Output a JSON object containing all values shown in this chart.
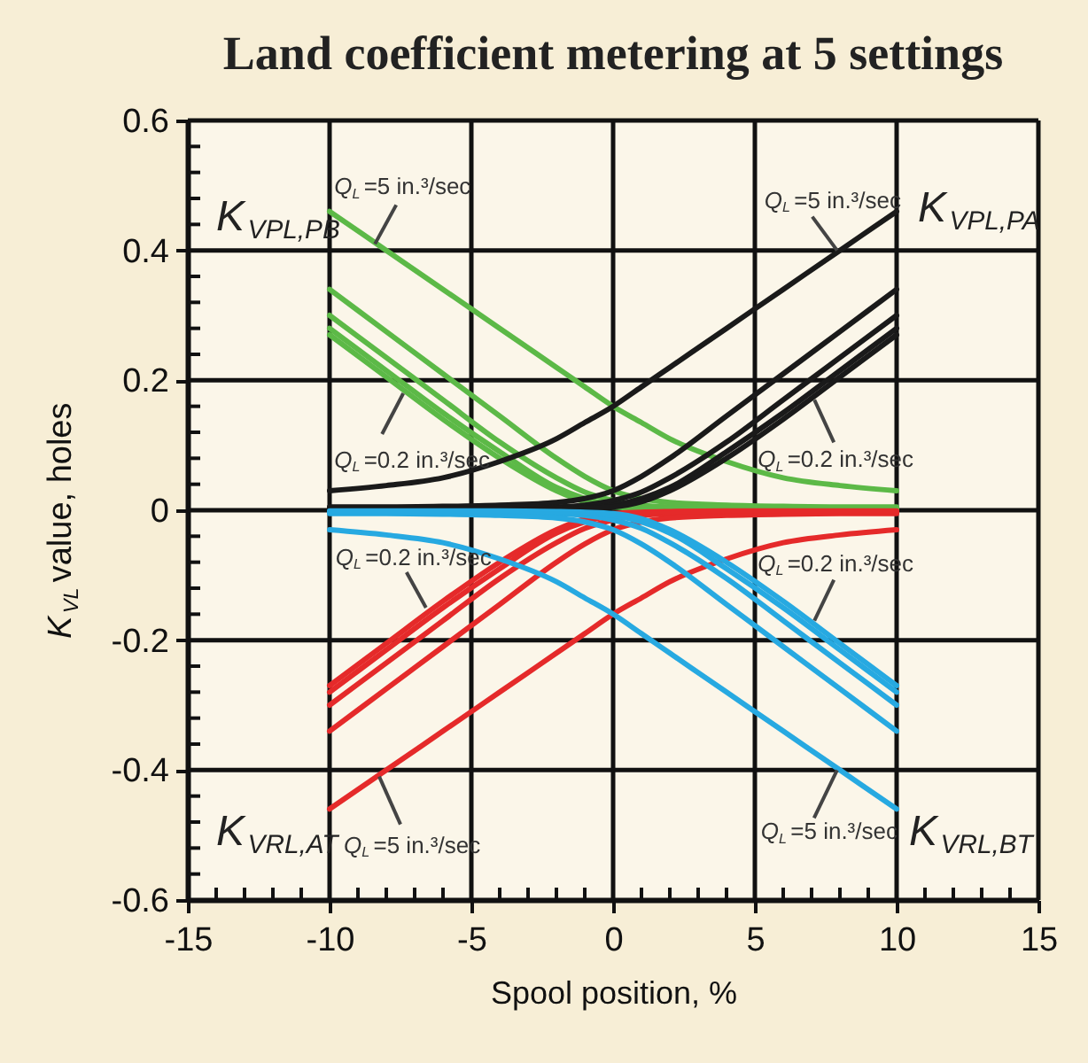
{
  "chart_data": {
    "type": "line",
    "title": "Land coefficient metering at 5 settings",
    "xlabel": "Spool position, %",
    "ylabel": "K$_{VL}$ value, holes",
    "x": [
      -10,
      -8,
      -6,
      -4,
      -2,
      -1,
      0,
      1,
      2,
      4,
      6,
      8,
      10
    ],
    "xlim": [
      -15,
      15
    ],
    "ylim": [
      -0.6,
      0.6
    ],
    "xticks": [
      -15,
      {
        "value": -14,
        "label": null
      },
      {
        "value": -13,
        "label": null
      },
      {
        "value": -12,
        "label": null
      },
      {
        "value": -11,
        "label": null
      },
      -10,
      {
        "value": -9,
        "label": null
      },
      {
        "value": -8,
        "label": null
      },
      {
        "value": -7,
        "label": null
      },
      {
        "value": -6,
        "label": null
      },
      -5,
      {
        "value": -4,
        "label": null
      },
      {
        "value": -3,
        "label": null
      },
      {
        "value": -2,
        "label": null
      },
      {
        "value": -1,
        "label": null
      },
      0,
      {
        "value": 1,
        "label": null
      },
      {
        "value": 2,
        "label": null
      },
      {
        "value": 3,
        "label": null
      },
      {
        "value": 4,
        "label": null
      },
      5,
      {
        "value": 6,
        "label": null
      },
      {
        "value": 7,
        "label": null
      },
      {
        "value": 8,
        "label": null
      },
      {
        "value": 9,
        "label": null
      },
      10,
      {
        "value": 11,
        "label": null
      },
      {
        "value": 12,
        "label": null
      },
      {
        "value": 13,
        "label": null
      },
      {
        "value": 14,
        "label": null
      },
      15
    ],
    "yticks": [
      -0.6,
      {
        "value": -0.56,
        "label": null
      },
      {
        "value": -0.52,
        "label": null
      },
      {
        "value": -0.48,
        "label": null
      },
      {
        "value": -0.44,
        "label": null
      },
      -0.4,
      {
        "value": -0.36,
        "label": null
      },
      {
        "value": -0.32,
        "label": null
      },
      {
        "value": -0.28,
        "label": null
      },
      {
        "value": -0.24,
        "label": null
      },
      -0.2,
      {
        "value": -0.16,
        "label": null
      },
      {
        "value": -0.12,
        "label": null
      },
      {
        "value": -0.08,
        "label": null
      },
      {
        "value": -0.04,
        "label": null
      },
      0,
      {
        "value": 0.04,
        "label": null
      },
      {
        "value": 0.08,
        "label": null
      },
      {
        "value": 0.12,
        "label": null
      },
      {
        "value": 0.16,
        "label": null
      },
      0.2,
      {
        "value": 0.24,
        "label": null
      },
      {
        "value": 0.28,
        "label": null
      },
      {
        "value": 0.32,
        "label": null
      },
      {
        "value": 0.36,
        "label": null
      },
      0.4,
      {
        "value": 0.44,
        "label": null
      },
      {
        "value": 0.48,
        "label": null
      },
      {
        "value": 0.52,
        "label": null
      },
      {
        "value": 0.56,
        "label": null
      },
      0.6
    ],
    "grid": true,
    "series": [
      {
        "color": "#5cb947",
        "values": [
          0.46,
          0.4,
          0.34,
          0.28,
          0.22,
          0.19,
          0.16,
          0.135,
          0.11,
          0.075,
          0.05,
          0.038,
          0.03
        ]
      },
      {
        "color": "#5cb947",
        "values": [
          0.34,
          0.275,
          0.21,
          0.145,
          0.08,
          0.052,
          0.03,
          0.018,
          0.012,
          0.008,
          0.006,
          0.005,
          0.005
        ]
      },
      {
        "color": "#5cb947",
        "values": [
          0.3,
          0.235,
          0.17,
          0.105,
          0.05,
          0.028,
          0.015,
          0.008,
          0.005,
          0.004,
          0.003,
          0.003,
          0.003
        ]
      },
      {
        "color": "#5cb947",
        "values": [
          0.28,
          0.215,
          0.15,
          0.09,
          0.035,
          0.018,
          0.008,
          0.004,
          0.003,
          0.002,
          0.002,
          0.002,
          0.002
        ]
      },
      {
        "color": "#5cb947",
        "values": [
          0.27,
          0.205,
          0.14,
          0.08,
          0.03,
          0.013,
          0.005,
          0.003,
          0.002,
          0.001,
          0.001,
          0.001,
          0.001
        ]
      },
      {
        "color": "#1a1a1a",
        "values": [
          0.03,
          0.038,
          0.05,
          0.075,
          0.11,
          0.135,
          0.16,
          0.19,
          0.22,
          0.28,
          0.34,
          0.4,
          0.46
        ]
      },
      {
        "color": "#1a1a1a",
        "values": [
          0.005,
          0.005,
          0.006,
          0.008,
          0.012,
          0.018,
          0.03,
          0.052,
          0.08,
          0.145,
          0.21,
          0.275,
          0.34
        ]
      },
      {
        "color": "#1a1a1a",
        "values": [
          0.003,
          0.003,
          0.003,
          0.004,
          0.005,
          0.008,
          0.015,
          0.028,
          0.05,
          0.105,
          0.17,
          0.235,
          0.3
        ]
      },
      {
        "color": "#1a1a1a",
        "values": [
          0.002,
          0.002,
          0.002,
          0.002,
          0.003,
          0.004,
          0.008,
          0.018,
          0.035,
          0.09,
          0.15,
          0.215,
          0.28
        ]
      },
      {
        "color": "#1a1a1a",
        "values": [
          0.001,
          0.001,
          0.001,
          0.001,
          0.002,
          0.003,
          0.005,
          0.013,
          0.03,
          0.08,
          0.14,
          0.205,
          0.27
        ]
      },
      {
        "color": "#e52a2a",
        "values": [
          -0.46,
          -0.4,
          -0.34,
          -0.28,
          -0.22,
          -0.19,
          -0.16,
          -0.135,
          -0.11,
          -0.075,
          -0.05,
          -0.038,
          -0.03
        ]
      },
      {
        "color": "#e52a2a",
        "values": [
          -0.34,
          -0.275,
          -0.21,
          -0.145,
          -0.08,
          -0.052,
          -0.03,
          -0.018,
          -0.012,
          -0.008,
          -0.006,
          -0.005,
          -0.005
        ]
      },
      {
        "color": "#e52a2a",
        "values": [
          -0.3,
          -0.235,
          -0.17,
          -0.105,
          -0.05,
          -0.028,
          -0.015,
          -0.008,
          -0.005,
          -0.004,
          -0.003,
          -0.003,
          -0.003
        ]
      },
      {
        "color": "#e52a2a",
        "values": [
          -0.28,
          -0.215,
          -0.15,
          -0.09,
          -0.035,
          -0.018,
          -0.008,
          -0.004,
          -0.003,
          -0.002,
          -0.002,
          -0.002,
          -0.002
        ]
      },
      {
        "color": "#e52a2a",
        "values": [
          -0.27,
          -0.205,
          -0.14,
          -0.08,
          -0.03,
          -0.013,
          -0.005,
          -0.003,
          -0.002,
          -0.001,
          -0.001,
          -0.001,
          -0.001
        ]
      },
      {
        "color": "#27a9e1",
        "values": [
          -0.03,
          -0.038,
          -0.05,
          -0.075,
          -0.11,
          -0.135,
          -0.16,
          -0.19,
          -0.22,
          -0.28,
          -0.34,
          -0.4,
          -0.46
        ]
      },
      {
        "color": "#27a9e1",
        "values": [
          -0.005,
          -0.005,
          -0.006,
          -0.008,
          -0.012,
          -0.018,
          -0.03,
          -0.052,
          -0.08,
          -0.145,
          -0.21,
          -0.275,
          -0.34
        ]
      },
      {
        "color": "#27a9e1",
        "values": [
          -0.003,
          -0.003,
          -0.003,
          -0.004,
          -0.005,
          -0.008,
          -0.015,
          -0.028,
          -0.05,
          -0.105,
          -0.17,
          -0.235,
          -0.3
        ]
      },
      {
        "color": "#27a9e1",
        "values": [
          -0.002,
          -0.002,
          -0.002,
          -0.002,
          -0.003,
          -0.004,
          -0.008,
          -0.018,
          -0.035,
          -0.09,
          -0.15,
          -0.215,
          -0.28
        ]
      },
      {
        "color": "#27a9e1",
        "values": [
          -0.001,
          -0.001,
          -0.001,
          -0.001,
          -0.002,
          -0.003,
          -0.005,
          -0.013,
          -0.03,
          -0.08,
          -0.14,
          -0.205,
          -0.27
        ]
      }
    ],
    "annotations": [
      "K$_{VPL,PB}$",
      "K$_{VPL,PA}$",
      "K$_{VRL,AT}$",
      "K$_{VRL,BT}$",
      {
        "text": "Q$_{L}$=5 in.³/sec",
        "x": -8.4,
        "y": 0.41
      },
      {
        "text": "Q$_{L}$=0.2 in.³/sec",
        "x": -7.4,
        "y": 0.18
      },
      {
        "text": "Q$_{L}$=5 in.³/sec",
        "x": 7.9,
        "y": 0.4
      },
      {
        "text": "Q$_{L}$=0.2 in.³/sec",
        "x": 7.1,
        "y": 0.17
      },
      {
        "text": "Q$_{L}$=0.2 in.³/sec",
        "x": -6.6,
        "y": -0.15
      },
      {
        "text": "Q$_{L}$=5 in.³/sec",
        "x": -8.25,
        "y": -0.41
      },
      {
        "text": "Q$_{L}$=0.2 in.³/sec",
        "x": 7.1,
        "y": -0.17
      },
      {
        "text": "Q$_{L}$=5 in.³/sec",
        "x": 7.9,
        "y": -0.4
      }
    ]
  }
}
